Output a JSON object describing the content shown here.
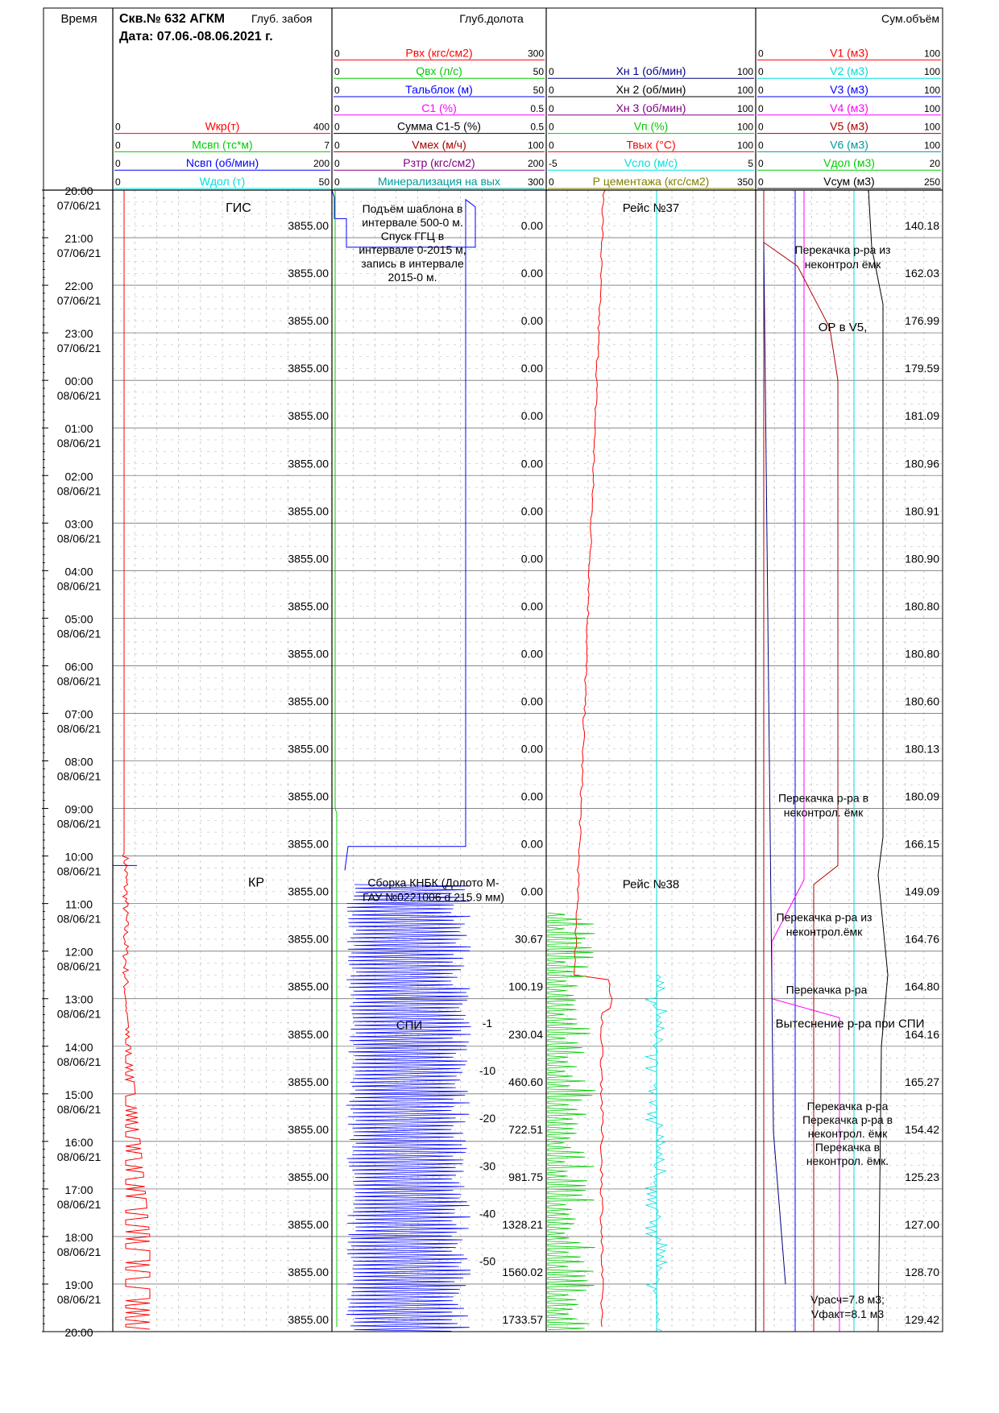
{
  "header": {
    "time_title": "Время",
    "well": "Скв.№ 632 АГКМ",
    "depth_title": "Глуб. забоя",
    "date": "Дата: 07.06.-08.06.2021 г.",
    "bit_depth_title": "Глуб.долота",
    "sum_title": "Сум.объём"
  },
  "colors": {
    "red": "#ff0000",
    "green": "#00cc00",
    "blue": "#0000ff",
    "magenta": "#ff00ff",
    "black": "#000000",
    "darkred": "#aa0000",
    "purple": "#800080",
    "cyan": "#00dddd",
    "olive": "#808000",
    "navy": "#000080",
    "teal": "#009999",
    "grid": "#b0b0b0"
  },
  "scales": {
    "track1": [
      {
        "name": "Wкр(т)",
        "min": "0",
        "max": "400",
        "color": "red"
      },
      {
        "name": "Мсвп (тс*м)",
        "min": "0",
        "max": "7",
        "color": "green"
      },
      {
        "name": "Nсвп (об/мин)",
        "min": "0",
        "max": "200",
        "color": "blue"
      },
      {
        "name": "Wдол (т)",
        "min": "0",
        "max": "50",
        "color": "cyan"
      }
    ],
    "track2": [
      {
        "name": "Рвх (кгс/см2)",
        "min": "0",
        "max": "300",
        "color": "red"
      },
      {
        "name": "Qвх (л/с)",
        "min": "0",
        "max": "50",
        "color": "green"
      },
      {
        "name": "Тальблок (м)",
        "min": "0",
        "max": "50",
        "color": "blue"
      },
      {
        "name": "С1 (%)",
        "min": "0",
        "max": "0.5",
        "color": "magenta"
      },
      {
        "name": "Сумма С1-5 (%)",
        "min": "0",
        "max": "0.5",
        "color": "black"
      },
      {
        "name": "Vмех (м/ч)",
        "min": "0",
        "max": "100",
        "color": "darkred"
      },
      {
        "name": "Рзтр (кгс/см2)",
        "min": "0",
        "max": "200",
        "color": "purple"
      },
      {
        "name": "Минерализация на вых",
        "min": "0",
        "max": "300",
        "color": "teal"
      }
    ],
    "track3": [
      {
        "name": "Хн 1 (об/мин)",
        "min": "0",
        "max": "100",
        "color": "navy"
      },
      {
        "name": "Хн 2 (об/мин)",
        "min": "0",
        "max": "100",
        "color": "black"
      },
      {
        "name": "Хн 3 (об/мин)",
        "min": "0",
        "max": "100",
        "color": "purple"
      },
      {
        "name": "Vп (%)",
        "min": "0",
        "max": "100",
        "color": "green"
      },
      {
        "name": "Твых (°С)",
        "min": "0",
        "max": "100",
        "color": "red"
      },
      {
        "name": "Vсло (м/с)",
        "min": "-5",
        "max": "5",
        "color": "cyan"
      },
      {
        "name": "Р цементажа (кгс/см2)",
        "min": "0",
        "max": "350",
        "color": "olive"
      }
    ],
    "track4": [
      {
        "name": "V1 (м3)",
        "min": "0",
        "max": "100",
        "color": "red"
      },
      {
        "name": "V2 (м3)",
        "min": "0",
        "max": "100",
        "color": "cyan"
      },
      {
        "name": "V3 (м3)",
        "min": "0",
        "max": "100",
        "color": "blue"
      },
      {
        "name": "V4 (м3)",
        "min": "0",
        "max": "100",
        "color": "magenta"
      },
      {
        "name": "V5 (м3)",
        "min": "0",
        "max": "100",
        "color": "darkred"
      },
      {
        "name": "V6 (м3)",
        "min": "0",
        "max": "100",
        "color": "teal"
      },
      {
        "name": "Vдол (м3)",
        "min": "0",
        "max": "20",
        "color": "green"
      },
      {
        "name": "Vсум (м3)",
        "min": "0",
        "max": "250",
        "color": "black"
      }
    ]
  },
  "chart_data": {
    "type": "line",
    "time_ticks": [
      {
        "time": "20:00",
        "date": "07/06/21"
      },
      {
        "time": "21:00",
        "date": "07/06/21"
      },
      {
        "time": "22:00",
        "date": "07/06/21"
      },
      {
        "time": "23:00",
        "date": "07/06/21"
      },
      {
        "time": "00:00",
        "date": "08/06/21"
      },
      {
        "time": "01:00",
        "date": "08/06/21"
      },
      {
        "time": "02:00",
        "date": "08/06/21"
      },
      {
        "time": "03:00",
        "date": "08/06/21"
      },
      {
        "time": "04:00",
        "date": "08/06/21"
      },
      {
        "time": "05:00",
        "date": "08/06/21"
      },
      {
        "time": "06:00",
        "date": "08/06/21"
      },
      {
        "time": "07:00",
        "date": "08/06/21"
      },
      {
        "time": "08:00",
        "date": "08/06/21"
      },
      {
        "time": "09:00",
        "date": "08/06/21"
      },
      {
        "time": "10:00",
        "date": "08/06/21"
      },
      {
        "time": "11:00",
        "date": "08/06/21"
      },
      {
        "time": "12:00",
        "date": "08/06/21"
      },
      {
        "time": "13:00",
        "date": "08/06/21"
      },
      {
        "time": "14:00",
        "date": "08/06/21"
      },
      {
        "time": "15:00",
        "date": "08/06/21"
      },
      {
        "time": "16:00",
        "date": "08/06/21"
      },
      {
        "time": "17:00",
        "date": "08/06/21"
      },
      {
        "time": "18:00",
        "date": "08/06/21"
      },
      {
        "time": "19:00",
        "date": "08/06/21"
      },
      {
        "time": "20:00",
        "date": ""
      }
    ],
    "well_depth": [
      "3855.00",
      "3855.00",
      "3855.00",
      "3855.00",
      "3855.00",
      "3855.00",
      "3855.00",
      "3855.00",
      "3855.00",
      "3855.00",
      "3855.00",
      "3855.00",
      "3855.00",
      "3855.00",
      "3855.00",
      "3855.00",
      "3855.00",
      "3855.00",
      "3855.00",
      "3855.00",
      "3855.00",
      "3855.00",
      "3855.00",
      "3855.00"
    ],
    "bit_depth": [
      "0.00",
      "0.00",
      "0.00",
      "0.00",
      "0.00",
      "0.00",
      "0.00",
      "0.00",
      "0.00",
      "0.00",
      "0.00",
      "0.00",
      "0.00",
      "0.00",
      "0.00",
      "30.67",
      "100.19",
      "230.04",
      "460.60",
      "722.51",
      "981.75",
      "1328.21",
      "1560.02",
      "1733.57"
    ],
    "sum_volume": [
      "140.18",
      "162.03",
      "176.99",
      "179.59",
      "181.09",
      "180.96",
      "180.91",
      "180.90",
      "180.80",
      "180.80",
      "180.60",
      "180.13",
      "180.09",
      "166.15",
      "149.09",
      "164.76",
      "164.80",
      "164.16",
      "165.27",
      "154.42",
      "125.23",
      "127.00",
      "128.70",
      "129.42"
    ],
    "small_marks": [
      {
        "hour": 17.6,
        "text": "-1"
      },
      {
        "hour": 18.6,
        "text": "-10"
      },
      {
        "hour": 19.6,
        "text": "-20"
      },
      {
        "hour": 20.6,
        "text": "-30"
      },
      {
        "hour": 21.6,
        "text": "-40"
      },
      {
        "hour": 22.6,
        "text": "-50"
      }
    ],
    "annotations": {
      "gis": "ГИС",
      "kr": "КР",
      "spi": "СПИ",
      "rise_template": [
        "Подъём шаблона в",
        "интервале 500-0 м.",
        "Спуск ГГЦ в",
        "интервале 0-2015 м,",
        "запись в интервале",
        "2015-0 м."
      ],
      "bha_assembly": [
        "Сборка КНБК (Долото М-",
        "ГАУ №0221006 d 215.9 мм)"
      ],
      "trip37": "Рейс №37",
      "trip38": "Рейс №38",
      "pump1": [
        "Перекачка р-ра из",
        "неконтрол ёмк"
      ],
      "op_v5": "ОР в V5,",
      "pump2": [
        "Перекачка р-ра в",
        "неконтрол. ёмк"
      ],
      "pump3": [
        "Перекачка р-ра из",
        "неконтрол.ёмк"
      ],
      "pump4": "Перекачка р-ра",
      "displacement": "Вытеснение р-ра при СПИ",
      "pump5": [
        "Перекачка р-ра",
        "Перекачка р-ра в",
        "неконтрол. ёмк",
        "Перекачка в",
        "неконтрол. ёмк."
      ],
      "vcalc": [
        "Vрасч=7.8 м3;",
        "Vфакт=8.1 м3"
      ]
    }
  }
}
